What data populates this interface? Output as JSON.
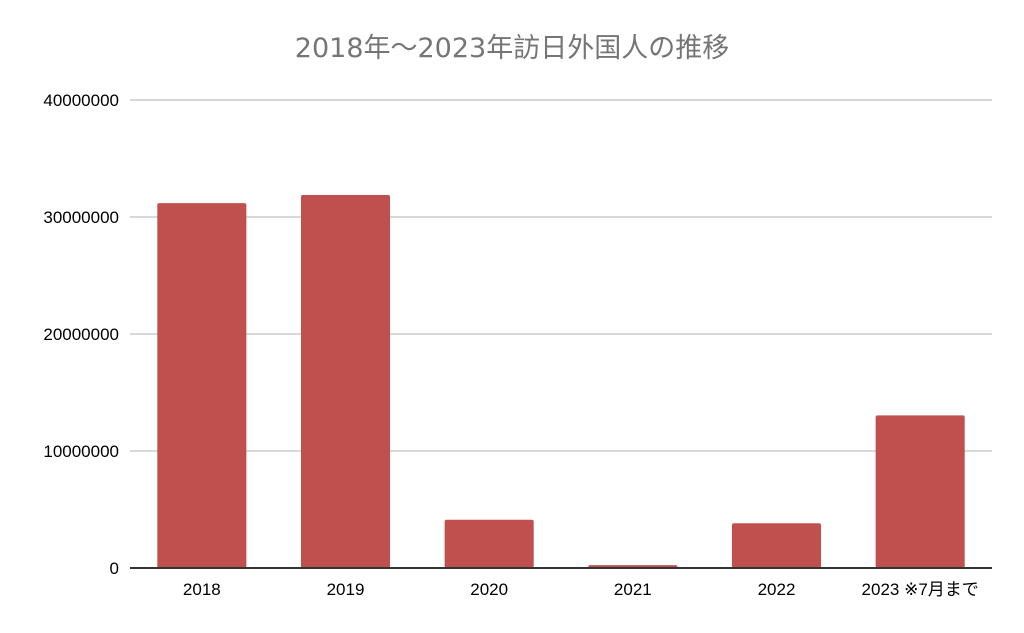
{
  "chart_data": {
    "type": "bar",
    "title": "2018年～2023年訪日外国人の推移",
    "categories": [
      "2018",
      "2019",
      "2020",
      "2021",
      "2022",
      "2023 ※7月まで"
    ],
    "series": [
      {
        "values": [
          31190000,
          31880000,
          4120000,
          250000,
          3830000,
          13040000
        ]
      }
    ],
    "xlabel": "",
    "ylabel": "",
    "ylim": [
      0,
      40000000
    ],
    "yticks": [
      "0",
      "10000000",
      "20000000",
      "30000000",
      "40000000"
    ],
    "grid": true,
    "legend": "none",
    "colors": {
      "bar": "#c0504d",
      "grid": "#cccccc",
      "baseline": "#333333",
      "title": "#757575"
    }
  }
}
